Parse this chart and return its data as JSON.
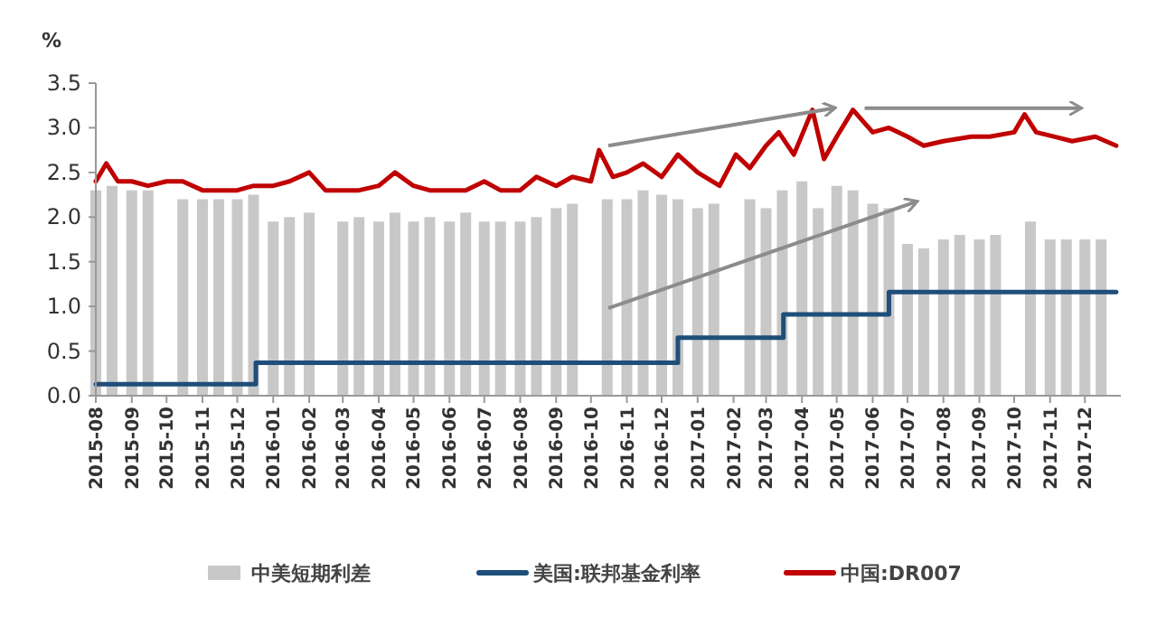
{
  "chart_data": {
    "type": "bar",
    "ylabel": "%",
    "xlim": [
      "2015-08",
      "2018-01"
    ],
    "xticks": [
      "2015-08",
      "2015-09",
      "2015-10",
      "2015-11",
      "2015-12",
      "2016-01",
      "2016-02",
      "2016-03",
      "2016-04",
      "2016-05",
      "2016-06",
      "2016-07",
      "2016-08",
      "2016-09",
      "2016-10",
      "2016-11",
      "2016-12",
      "2017-01",
      "2017-02",
      "2017-03",
      "2017-04",
      "2017-05",
      "2017-06",
      "2017-07",
      "2017-08",
      "2017-09",
      "2017-10",
      "2017-11",
      "2017-12"
    ],
    "ylim": [
      0,
      3.5
    ],
    "yticks": [
      {
        "value": 0,
        "label": "0.0"
      },
      {
        "value": 0.5,
        "label": "0.5"
      },
      {
        "value": 1,
        "label": "1.0"
      },
      {
        "value": 1.5,
        "label": "1.5"
      },
      {
        "value": 2,
        "label": "2.0"
      },
      {
        "value": 2.5,
        "label": "2.5"
      },
      {
        "value": 3,
        "label": "3.0"
      },
      {
        "value": 3.5,
        "label": "3.5"
      }
    ],
    "grid": false,
    "legend": "bottom",
    "series": [
      {
        "name": "中美短期利差",
        "color": "#c8c8c8",
        "x": [
          "2015-08-01",
          "2015-08-15",
          "2015-09-01",
          "2015-09-15",
          "2015-10-15",
          "2015-11-01",
          "2015-11-15",
          "2015-12-01",
          "2015-12-15",
          "2016-01-01",
          "2016-01-15",
          "2016-02-01",
          "2016-03-01",
          "2016-03-15",
          "2016-04-01",
          "2016-04-15",
          "2016-05-01",
          "2016-05-15",
          "2016-06-01",
          "2016-06-15",
          "2016-07-01",
          "2016-07-15",
          "2016-08-01",
          "2016-08-15",
          "2016-09-01",
          "2016-09-15",
          "2016-10-15",
          "2016-11-01",
          "2016-11-15",
          "2016-12-01",
          "2016-12-15",
          "2017-01-01",
          "2017-01-15",
          "2017-02-15",
          "2017-03-01",
          "2017-03-15",
          "2017-04-01",
          "2017-04-15",
          "2017-05-01",
          "2017-05-15",
          "2017-06-01",
          "2017-06-15",
          "2017-07-01",
          "2017-07-15",
          "2017-08-01",
          "2017-08-15",
          "2017-09-01",
          "2017-09-15",
          "2017-10-15",
          "2017-11-01",
          "2017-11-15",
          "2017-12-01",
          "2017-12-15"
        ],
        "values": [
          2.3,
          2.35,
          2.3,
          2.3,
          2.2,
          2.2,
          2.2,
          2.2,
          2.25,
          1.95,
          2.0,
          2.05,
          1.95,
          2.0,
          1.95,
          2.05,
          1.95,
          2.0,
          1.95,
          2.05,
          1.95,
          1.95,
          1.95,
          2.0,
          2.1,
          2.15,
          2.2,
          2.2,
          2.3,
          2.25,
          2.2,
          2.1,
          2.15,
          2.2,
          2.1,
          2.3,
          2.4,
          2.1,
          2.35,
          2.3,
          2.15,
          2.1,
          1.7,
          1.65,
          1.75,
          1.8,
          1.75,
          1.8,
          1.95,
          1.75,
          1.75,
          1.75,
          1.75
        ]
      },
      {
        "name": "美国:联邦基金利率",
        "type": "step",
        "color": "#1f4e79",
        "x": [
          "2015-08-01",
          "2015-12-17",
          "2016-12-15",
          "2017-03-16",
          "2017-06-15",
          "2017-12-28"
        ],
        "values": [
          0.13,
          0.37,
          0.65,
          0.91,
          1.16,
          1.16
        ]
      },
      {
        "name": "中国:DR007",
        "type": "line",
        "color": "#c00000",
        "x": [
          "2015-08-01",
          "2015-08-10",
          "2015-08-20",
          "2015-09-01",
          "2015-09-15",
          "2015-10-01",
          "2015-10-15",
          "2015-11-01",
          "2015-11-15",
          "2015-12-01",
          "2015-12-15",
          "2016-01-01",
          "2016-01-15",
          "2016-02-01",
          "2016-02-15",
          "2016-03-01",
          "2016-03-15",
          "2016-04-01",
          "2016-04-15",
          "2016-05-01",
          "2016-05-15",
          "2016-06-01",
          "2016-06-15",
          "2016-07-01",
          "2016-07-15",
          "2016-08-01",
          "2016-08-15",
          "2016-09-01",
          "2016-09-15",
          "2016-10-01",
          "2016-10-08",
          "2016-10-20",
          "2016-11-01",
          "2016-11-15",
          "2016-12-01",
          "2016-12-15",
          "2017-01-01",
          "2017-01-20",
          "2017-02-03",
          "2017-02-15",
          "2017-03-01",
          "2017-03-12",
          "2017-03-25",
          "2017-04-10",
          "2017-04-20",
          "2017-05-01",
          "2017-05-15",
          "2017-06-01",
          "2017-06-15",
          "2017-07-01",
          "2017-07-15",
          "2017-08-01",
          "2017-08-25",
          "2017-09-10",
          "2017-10-01",
          "2017-10-10",
          "2017-10-20",
          "2017-11-05",
          "2017-11-20",
          "2017-12-10",
          "2017-12-28"
        ],
        "values": [
          2.4,
          2.6,
          2.4,
          2.4,
          2.35,
          2.4,
          2.4,
          2.3,
          2.3,
          2.3,
          2.35,
          2.35,
          2.4,
          2.5,
          2.3,
          2.3,
          2.3,
          2.35,
          2.5,
          2.35,
          2.3,
          2.3,
          2.3,
          2.4,
          2.3,
          2.3,
          2.45,
          2.35,
          2.45,
          2.4,
          2.75,
          2.45,
          2.5,
          2.6,
          2.45,
          2.7,
          2.5,
          2.35,
          2.7,
          2.55,
          2.8,
          2.95,
          2.7,
          3.2,
          2.65,
          2.9,
          3.2,
          2.95,
          3.0,
          2.9,
          2.8,
          2.85,
          2.9,
          2.9,
          2.95,
          3.15,
          2.95,
          2.9,
          2.85,
          2.9,
          2.8
        ]
      }
    ]
  }
}
